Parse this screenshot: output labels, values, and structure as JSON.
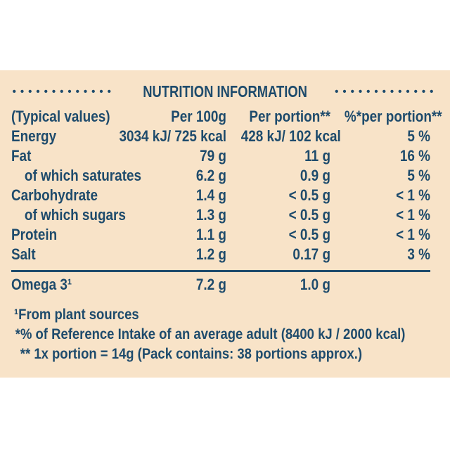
{
  "colors": {
    "panel_background": "#f8e3c8",
    "page_background": "#ffffff",
    "text": "#1e4b6c"
  },
  "header": {
    "dots_left": "•••••••••••••",
    "title": "NUTRITION INFORMATION",
    "dots_right": "•••••••••••••"
  },
  "table": {
    "columns": [
      "(Typical values)",
      "Per 100g",
      "Per portion**",
      "%*per portion**"
    ],
    "rows": [
      {
        "label": "Energy",
        "per_100g": "3034 kJ/ 725 kcal",
        "per_portion": "428 kJ/ 102 kcal",
        "pct_per_portion": "5 %"
      },
      {
        "label": "Fat",
        "per_100g": "79 g",
        "per_portion": "11 g",
        "pct_per_portion": "16 %"
      },
      {
        "label": "of which saturates",
        "per_100g": "6.2 g",
        "per_portion": "0.9 g",
        "pct_per_portion": "5 %"
      },
      {
        "label": "Carbohydrate",
        "per_100g": "1.4 g",
        "per_portion": "< 0.5 g",
        "pct_per_portion": "< 1 %"
      },
      {
        "label": "of which sugars",
        "per_100g": "1.3 g",
        "per_portion": "< 0.5 g",
        "pct_per_portion": "< 1 %"
      },
      {
        "label": "Protein",
        "per_100g": "1.1 g",
        "per_portion": "< 0.5 g",
        "pct_per_portion": "< 1 %"
      },
      {
        "label": "Salt",
        "per_100g": "1.2 g",
        "per_portion": "0.17 g",
        "pct_per_portion": "3 %"
      }
    ],
    "omega_row": {
      "label": "Omega 3¹",
      "per_100g": "7.2 g",
      "per_portion": "1.0 g",
      "pct_per_portion": ""
    }
  },
  "footnotes": [
    "¹From plant sources",
    "*% of Reference Intake of an average adult (8400 kJ / 2000 kcal)",
    "** 1x portion = 14g (Pack contains: 38 portions approx.)"
  ]
}
